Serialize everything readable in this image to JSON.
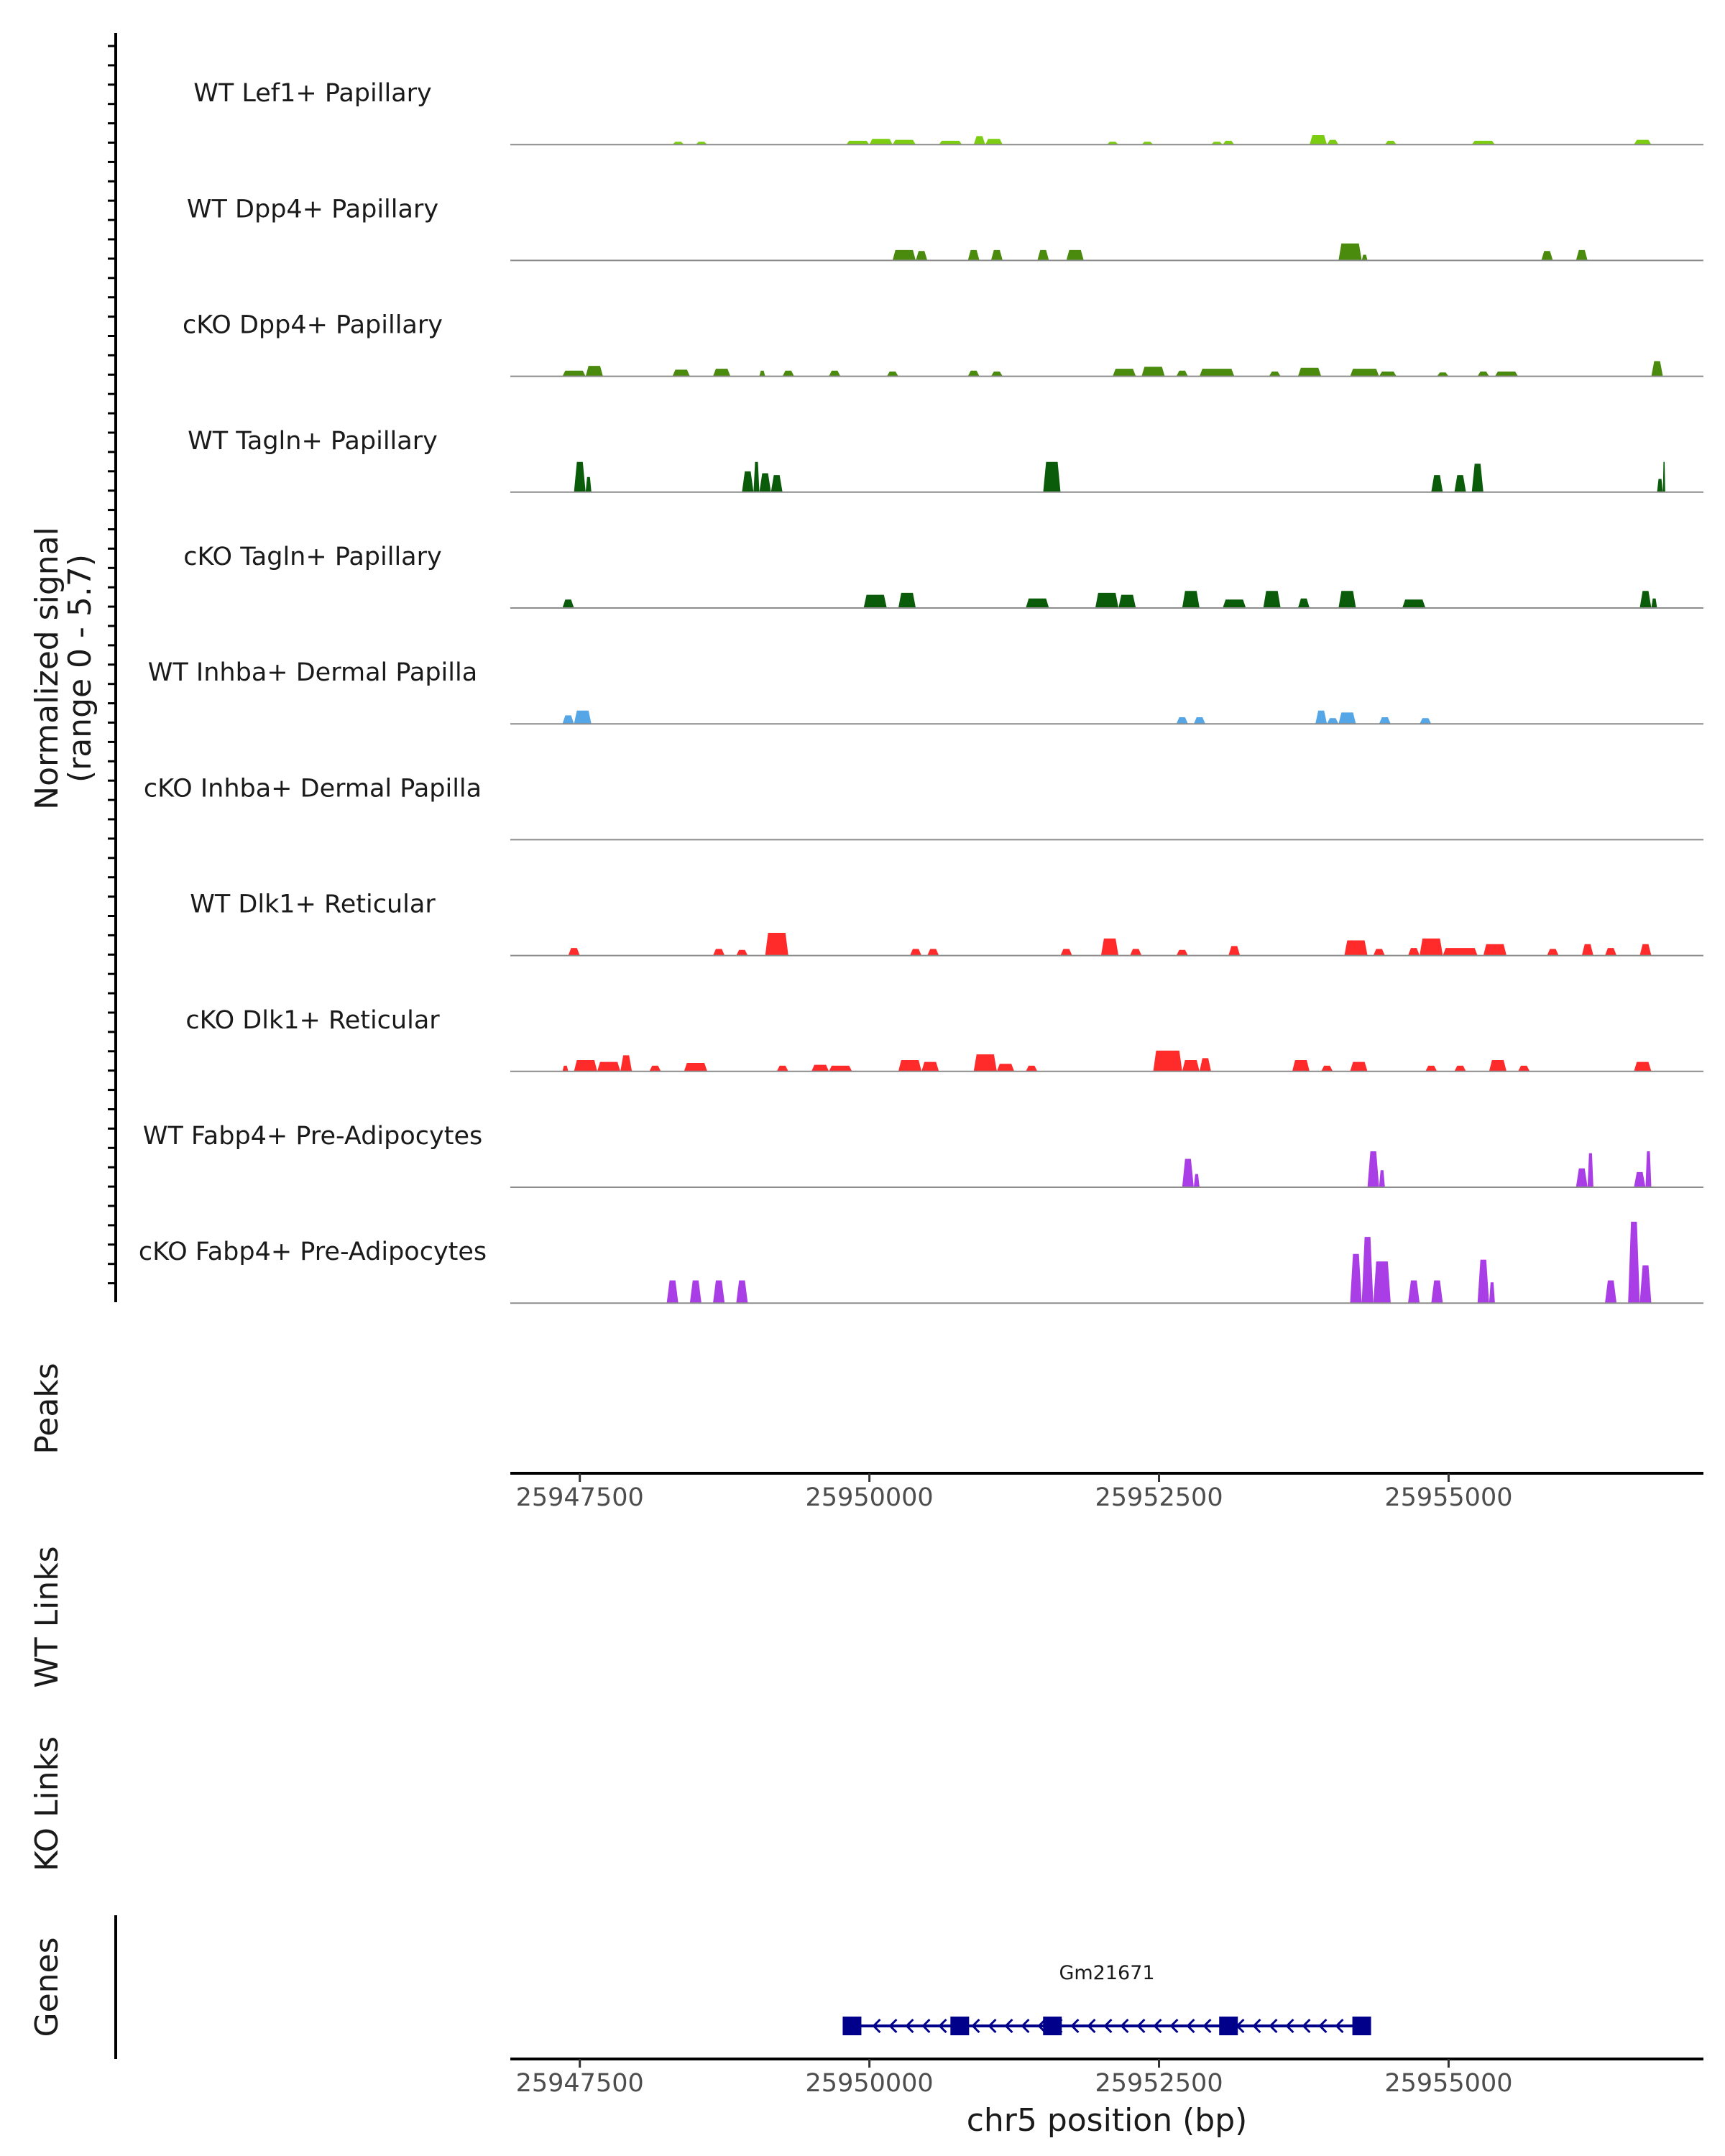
{
  "chart_data": {
    "type": "area",
    "title": "",
    "xlabel": "chr5 position (bp)",
    "xlim": [
      25946900,
      25957200
    ],
    "ylim": [
      0,
      5.7
    ],
    "signal_axis_label": [
      "Normalized signal",
      "(range 0 - 5.7)"
    ],
    "panel_labels": {
      "peaks": "Peaks",
      "wt_links": "WT Links",
      "ko_links": "KO Links",
      "genes": "Genes"
    },
    "x_ticks": [
      25947500,
      25950000,
      25952500,
      25955000
    ],
    "x_tick_labels": [
      "25947500",
      "25950000",
      "25952500",
      "25955000"
    ],
    "tracks": [
      {
        "name": "WT Lef1+ Papillary",
        "color": "#7ccd12",
        "segments": [
          [
            25948300,
            25948400,
            0.15
          ],
          [
            25948500,
            25948600,
            0.15
          ],
          [
            25949800,
            25950000,
            0.2
          ],
          [
            25950000,
            25950200,
            0.3
          ],
          [
            25950200,
            25950400,
            0.25
          ],
          [
            25950600,
            25950800,
            0.2
          ],
          [
            25950900,
            25951000,
            0.45
          ],
          [
            25951000,
            25951150,
            0.3
          ],
          [
            25952050,
            25952150,
            0.15
          ],
          [
            25952350,
            25952450,
            0.15
          ],
          [
            25952950,
            25953050,
            0.15
          ],
          [
            25953050,
            25953150,
            0.2
          ],
          [
            25953800,
            25953950,
            0.5
          ],
          [
            25953950,
            25954050,
            0.25
          ],
          [
            25954450,
            25954550,
            0.2
          ],
          [
            25955200,
            25955400,
            0.2
          ],
          [
            25956600,
            25956750,
            0.25
          ]
        ]
      },
      {
        "name": "WT Dpp4+ Papillary",
        "color": "#4a8a0c",
        "segments": [
          [
            25950200,
            25950400,
            0.55
          ],
          [
            25950400,
            25950500,
            0.5
          ],
          [
            25950850,
            25950950,
            0.55
          ],
          [
            25951050,
            25951150,
            0.55
          ],
          [
            25951450,
            25951550,
            0.55
          ],
          [
            25951700,
            25951850,
            0.55
          ],
          [
            25954050,
            25954250,
            0.9
          ],
          [
            25955800,
            25955900,
            0.5
          ],
          [
            25956100,
            25956200,
            0.55
          ],
          [
            25954250,
            25954300,
            0.3
          ]
        ]
      },
      {
        "name": "cKO Dpp4+ Papillary",
        "color": "#4a8a0c",
        "segments": [
          [
            25947350,
            25947550,
            0.3
          ],
          [
            25947550,
            25947700,
            0.55
          ],
          [
            25948300,
            25948450,
            0.35
          ],
          [
            25948650,
            25948800,
            0.4
          ],
          [
            25949050,
            25949100,
            0.3
          ],
          [
            25949250,
            25949350,
            0.3
          ],
          [
            25949650,
            25949750,
            0.3
          ],
          [
            25950150,
            25950250,
            0.25
          ],
          [
            25950850,
            25950950,
            0.3
          ],
          [
            25951050,
            25951150,
            0.25
          ],
          [
            25952100,
            25952300,
            0.4
          ],
          [
            25952350,
            25952550,
            0.5
          ],
          [
            25952650,
            25952750,
            0.3
          ],
          [
            25952850,
            25953150,
            0.4
          ],
          [
            25953450,
            25953550,
            0.25
          ],
          [
            25953700,
            25953900,
            0.45
          ],
          [
            25954150,
            25954400,
            0.4
          ],
          [
            25954400,
            25954550,
            0.25
          ],
          [
            25954900,
            25955000,
            0.2
          ],
          [
            25955250,
            25955350,
            0.25
          ],
          [
            25955400,
            25955600,
            0.25
          ],
          [
            25956750,
            25956850,
            0.8
          ]
        ]
      },
      {
        "name": "WT Tagln+ Papillary",
        "color": "#0a5c0a",
        "segments": [
          [
            25947450,
            25947550,
            1.6
          ],
          [
            25947550,
            25947600,
            0.8
          ],
          [
            25948900,
            25949000,
            1.1
          ],
          [
            25949000,
            25949050,
            1.6
          ],
          [
            25949050,
            25949150,
            1.0
          ],
          [
            25949150,
            25949250,
            0.9
          ],
          [
            25951500,
            25951650,
            1.6
          ],
          [
            25954850,
            25954950,
            0.9
          ],
          [
            25955050,
            25955150,
            0.9
          ],
          [
            25955200,
            25955300,
            1.5
          ],
          [
            25956800,
            25956850,
            0.7
          ],
          [
            25956850,
            25956870,
            1.6
          ]
        ]
      },
      {
        "name": "cKO Tagln+ Papillary",
        "color": "#0a5c0a",
        "segments": [
          [
            25947350,
            25947450,
            0.45
          ],
          [
            25949950,
            25950150,
            0.7
          ],
          [
            25950250,
            25950400,
            0.8
          ],
          [
            25951350,
            25951550,
            0.5
          ],
          [
            25951950,
            25952150,
            0.8
          ],
          [
            25952150,
            25952300,
            0.7
          ],
          [
            25952700,
            25952850,
            0.9
          ],
          [
            25953050,
            25953250,
            0.45
          ],
          [
            25953400,
            25953550,
            0.9
          ],
          [
            25953700,
            25953800,
            0.5
          ],
          [
            25954050,
            25954200,
            0.9
          ],
          [
            25954600,
            25954800,
            0.45
          ],
          [
            25956650,
            25956750,
            0.9
          ],
          [
            25956750,
            25956800,
            0.5
          ]
        ]
      },
      {
        "name": "WT Inhba+ Dermal Papilla",
        "color": "#55a6e6",
        "segments": [
          [
            25947350,
            25947450,
            0.45
          ],
          [
            25947450,
            25947600,
            0.7
          ],
          [
            25952650,
            25952750,
            0.35
          ],
          [
            25952800,
            25952900,
            0.35
          ],
          [
            25953850,
            25953950,
            0.7
          ],
          [
            25953950,
            25954050,
            0.3
          ],
          [
            25954050,
            25954200,
            0.6
          ],
          [
            25954400,
            25954500,
            0.35
          ],
          [
            25954750,
            25954850,
            0.3
          ]
        ]
      },
      {
        "name": "cKO Inhba+ Dermal Papilla",
        "color": "#55a6e6",
        "segments": []
      },
      {
        "name": "WT Dlk1+ Reticular",
        "color": "#ff2a2a",
        "segments": [
          [
            25947400,
            25947500,
            0.4
          ],
          [
            25948650,
            25948750,
            0.35
          ],
          [
            25948850,
            25948950,
            0.3
          ],
          [
            25949100,
            25949300,
            1.2
          ],
          [
            25950350,
            25950450,
            0.35
          ],
          [
            25950500,
            25950600,
            0.35
          ],
          [
            25951650,
            25951750,
            0.35
          ],
          [
            25952000,
            25952150,
            0.9
          ],
          [
            25952250,
            25952350,
            0.35
          ],
          [
            25952650,
            25952750,
            0.3
          ],
          [
            25953100,
            25953200,
            0.5
          ],
          [
            25954100,
            25954300,
            0.8
          ],
          [
            25954350,
            25954450,
            0.35
          ],
          [
            25954650,
            25954750,
            0.4
          ],
          [
            25954750,
            25954950,
            0.9
          ],
          [
            25954950,
            25955250,
            0.4
          ],
          [
            25955300,
            25955500,
            0.6
          ],
          [
            25955850,
            25955950,
            0.35
          ],
          [
            25956150,
            25956250,
            0.6
          ],
          [
            25956350,
            25956450,
            0.4
          ],
          [
            25956650,
            25956750,
            0.6
          ]
        ]
      },
      {
        "name": "cKO Dlk1+ Reticular",
        "color": "#ff2a2a",
        "segments": [
          [
            25947350,
            25947400,
            0.3
          ],
          [
            25947450,
            25947650,
            0.6
          ],
          [
            25947650,
            25947850,
            0.5
          ],
          [
            25947850,
            25947950,
            0.85
          ],
          [
            25948100,
            25948200,
            0.3
          ],
          [
            25948400,
            25948600,
            0.45
          ],
          [
            25949200,
            25949300,
            0.3
          ],
          [
            25949500,
            25949650,
            0.35
          ],
          [
            25949650,
            25949850,
            0.3
          ],
          [
            25950250,
            25950450,
            0.6
          ],
          [
            25950450,
            25950600,
            0.5
          ],
          [
            25950900,
            25951100,
            0.9
          ],
          [
            25951100,
            25951250,
            0.4
          ],
          [
            25951350,
            25951450,
            0.3
          ],
          [
            25952450,
            25952700,
            1.1
          ],
          [
            25952700,
            25952850,
            0.6
          ],
          [
            25952850,
            25952950,
            0.7
          ],
          [
            25953650,
            25953800,
            0.6
          ],
          [
            25953900,
            25954000,
            0.3
          ],
          [
            25954150,
            25954300,
            0.5
          ],
          [
            25954800,
            25954900,
            0.3
          ],
          [
            25955050,
            25955150,
            0.3
          ],
          [
            25955350,
            25955500,
            0.6
          ],
          [
            25955600,
            25955700,
            0.3
          ],
          [
            25956600,
            25956750,
            0.5
          ]
        ]
      },
      {
        "name": "WT Fabp4+ Pre-Adipocytes",
        "color": "#aa3ee6",
        "segments": [
          [
            25952700,
            25952800,
            1.5
          ],
          [
            25952800,
            25952850,
            0.7
          ],
          [
            25954300,
            25954400,
            1.9
          ],
          [
            25954400,
            25954450,
            0.9
          ],
          [
            25956100,
            25956200,
            1.0
          ],
          [
            25956200,
            25956250,
            1.8
          ],
          [
            25956600,
            25956700,
            0.8
          ],
          [
            25956700,
            25956750,
            1.9
          ]
        ]
      },
      {
        "name": "cKO Fabp4+ Pre-Adipocytes",
        "color": "#aa3ee6",
        "segments": [
          [
            25948250,
            25948350,
            1.2
          ],
          [
            25948450,
            25948550,
            1.2
          ],
          [
            25948650,
            25948750,
            1.2
          ],
          [
            25948850,
            25948950,
            1.2
          ],
          [
            25954150,
            25954250,
            2.6
          ],
          [
            25954250,
            25954350,
            3.5
          ],
          [
            25954350,
            25954500,
            2.2
          ],
          [
            25954650,
            25954750,
            1.2
          ],
          [
            25954850,
            25954950,
            1.2
          ],
          [
            25955250,
            25955350,
            2.3
          ],
          [
            25955350,
            25955400,
            1.1
          ],
          [
            25956350,
            25956450,
            1.2
          ],
          [
            25956550,
            25956650,
            4.3
          ],
          [
            25956650,
            25956750,
            2.0
          ]
        ]
      }
    ],
    "gene": {
      "name": "Gm21671",
      "strand": "-",
      "start": 25949850,
      "end": 25954250,
      "exons": [
        25949850,
        25950780,
        25951580,
        25953100,
        25954250
      ]
    }
  }
}
